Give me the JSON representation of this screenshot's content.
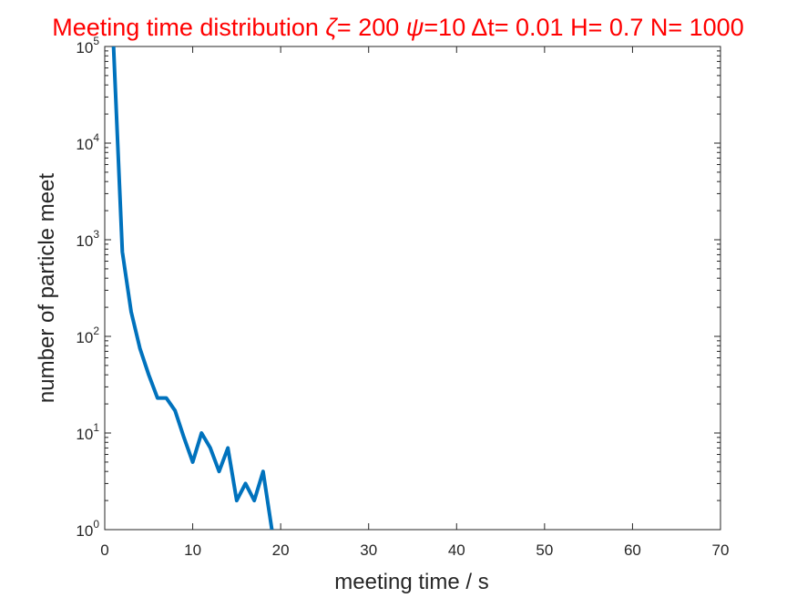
{
  "chart_data": {
    "type": "line",
    "title_parts": [
      {
        "text": "Meeting time distribution ",
        "italic": false
      },
      {
        "text": "ζ",
        "italic": true
      },
      {
        "text": "= 200 ",
        "italic": false
      },
      {
        "text": "ψ",
        "italic": true
      },
      {
        "text": "=10 Δt= 0.01 H= 0.7 N= 1000",
        "italic": false
      }
    ],
    "xlabel": "meeting time / s",
    "ylabel": "number of particle meet",
    "xlim": [
      0,
      70
    ],
    "ylim": [
      1,
      100000
    ],
    "yscale": "log",
    "grid": false,
    "x_ticks": [
      0,
      10,
      20,
      30,
      40,
      50,
      60,
      70
    ],
    "y_ticks": [
      1,
      10,
      100,
      1000,
      10000,
      100000
    ],
    "y_tick_labels": [
      {
        "base": "10",
        "exp": "0"
      },
      {
        "base": "10",
        "exp": "1"
      },
      {
        "base": "10",
        "exp": "2"
      },
      {
        "base": "10",
        "exp": "3"
      },
      {
        "base": "10",
        "exp": "4"
      },
      {
        "base": "10",
        "exp": "5"
      }
    ],
    "series": [
      {
        "color": "#0072bd",
        "x": [
          1,
          2,
          3,
          4,
          5,
          6,
          7,
          8,
          9,
          10,
          11,
          12,
          13,
          14,
          15,
          16,
          17,
          18,
          19
        ],
        "y": [
          100000,
          750,
          180,
          75,
          40,
          23,
          23,
          17,
          9,
          5,
          10,
          7,
          4,
          7,
          2,
          3,
          2,
          4,
          1
        ]
      }
    ]
  }
}
